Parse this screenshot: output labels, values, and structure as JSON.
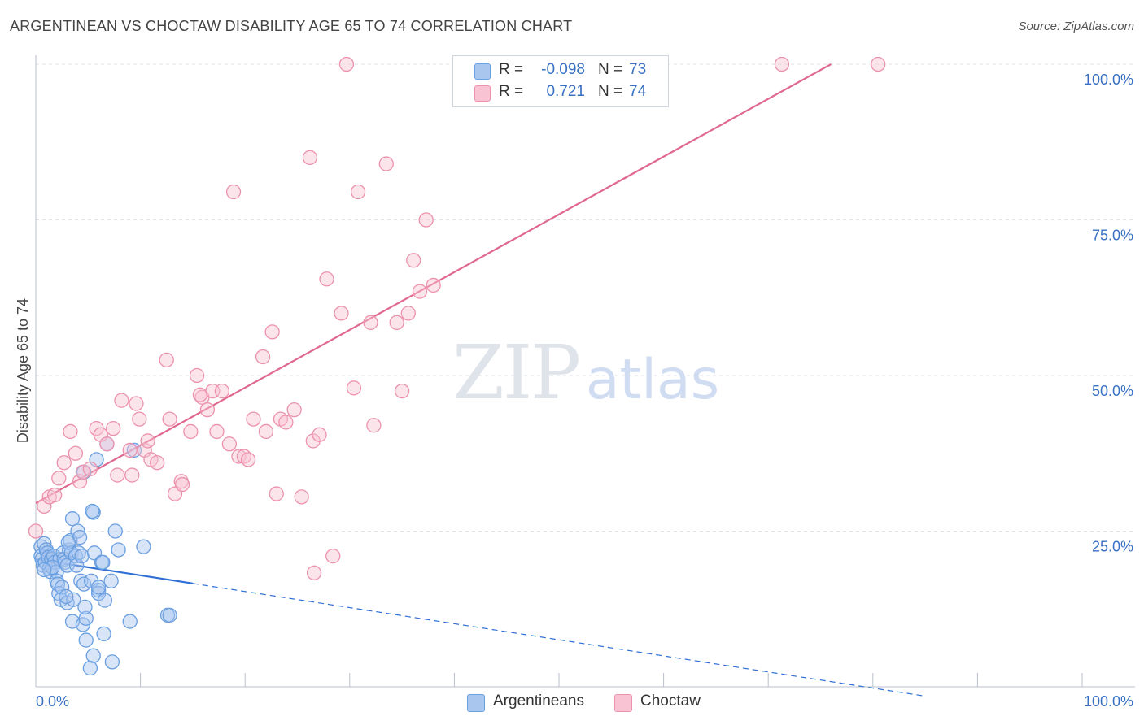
{
  "header": {
    "title": "ARGENTINEAN VS CHOCTAW DISABILITY AGE 65 TO 74 CORRELATION CHART",
    "source": "Source: ZipAtlas.com"
  },
  "watermark": {
    "zip": "ZIP",
    "atlas": "atlas"
  },
  "legend": {
    "r_label": "R =",
    "n_label": "N =",
    "rows": [
      {
        "r": "-0.098",
        "n": "73",
        "color": "#a9c6ef",
        "border": "#6a9fe0"
      },
      {
        "r": "0.721",
        "n": "74",
        "color": "#f8c4d3",
        "border": "#ec92ad"
      }
    ]
  },
  "bottom_legend": [
    {
      "label": "Argentineans",
      "color": "#a9c6ef",
      "border": "#6a9fe0"
    },
    {
      "label": "Choctaw",
      "color": "#f8c4d3",
      "border": "#ec92ad"
    }
  ],
  "colors": {
    "blue_line": "#2f6fd6",
    "pink_line": "#e0688f",
    "blue_point": "#6a9fe0",
    "pink_point": "#ec92ad",
    "axis_text": "#3a70c2"
  },
  "chart_data": {
    "type": "scatter",
    "title": "ARGENTINEAN VS CHOCTAW DISABILITY AGE 65 TO 74 CORRELATION CHART",
    "xlabel": "",
    "ylabel": "Disability Age 65 to 74",
    "xlim": [
      0,
      100
    ],
    "ylim": [
      0,
      100
    ],
    "x_tick_labels": [
      {
        "value": 0,
        "label": "0.0%"
      },
      {
        "value": 100,
        "label": "100.0%"
      }
    ],
    "y_tick_labels": [
      {
        "value": 25,
        "label": "25.0%"
      },
      {
        "value": 50,
        "label": "50.0%"
      },
      {
        "value": 75,
        "label": "75.0%"
      },
      {
        "value": 100,
        "label": "100.0%"
      }
    ],
    "grid": true,
    "series": [
      {
        "name": "Argentineans",
        "r": -0.098,
        "n": 73,
        "trend": {
          "x0": 0,
          "y0": 20.5,
          "x1": 15,
          "y1": 16.6,
          "dashed_to_x": 85,
          "dashed_to_y": -1.5
        },
        "points": [
          [
            0.5,
            22.5
          ],
          [
            0.5,
            21
          ],
          [
            0.6,
            20.5
          ],
          [
            0.7,
            19.5
          ],
          [
            0.8,
            23
          ],
          [
            0.9,
            20
          ],
          [
            1,
            22
          ],
          [
            1.1,
            21.5
          ],
          [
            1.2,
            20.8
          ],
          [
            1.3,
            19
          ],
          [
            1.4,
            18.5
          ],
          [
            1.5,
            20.5
          ],
          [
            1.7,
            21
          ],
          [
            1.8,
            20
          ],
          [
            2,
            18.5
          ],
          [
            2,
            17
          ],
          [
            2.1,
            16.5
          ],
          [
            2.2,
            15
          ],
          [
            2.3,
            20.5
          ],
          [
            2.4,
            14
          ],
          [
            2.5,
            16
          ],
          [
            2.6,
            21.5
          ],
          [
            2.7,
            20.5
          ],
          [
            2.8,
            20
          ],
          [
            3,
            19.5
          ],
          [
            3,
            13.5
          ],
          [
            3.2,
            22
          ],
          [
            3.3,
            23.5
          ],
          [
            3.4,
            21.5
          ],
          [
            3.5,
            27
          ],
          [
            3.5,
            10.5
          ],
          [
            3.6,
            14
          ],
          [
            3.8,
            21
          ],
          [
            3.9,
            19.5
          ],
          [
            4,
            25
          ],
          [
            4.1,
            21.5
          ],
          [
            4.2,
            24
          ],
          [
            4.3,
            17
          ],
          [
            4.4,
            21
          ],
          [
            4.5,
            10
          ],
          [
            4.6,
            16.5
          ],
          [
            4.6,
            34.5
          ],
          [
            4.8,
            11
          ],
          [
            4.8,
            7.5
          ],
          [
            5.2,
            3
          ],
          [
            5.3,
            17
          ],
          [
            5.5,
            5
          ],
          [
            5.5,
            28
          ],
          [
            5.6,
            21.5
          ],
          [
            5.8,
            36.5
          ],
          [
            6,
            15.5
          ],
          [
            6,
            15
          ],
          [
            6,
            16
          ],
          [
            6.3,
            20
          ],
          [
            6.4,
            20
          ],
          [
            6.5,
            8.5
          ],
          [
            6.8,
            39
          ],
          [
            7.2,
            17
          ],
          [
            7.3,
            4
          ],
          [
            7.6,
            25
          ],
          [
            7.9,
            22
          ],
          [
            9,
            10.5
          ],
          [
            9.4,
            38
          ],
          [
            10.3,
            22.5
          ],
          [
            12.6,
            11.5
          ],
          [
            12.8,
            11.5
          ],
          [
            5.4,
            28.2
          ],
          [
            2.9,
            14.5
          ],
          [
            1.6,
            19.2
          ],
          [
            0.8,
            18.8
          ],
          [
            3.1,
            23.2
          ],
          [
            4.7,
            12.8
          ],
          [
            6.6,
            13.9
          ]
        ]
      },
      {
        "name": "Choctaw",
        "r": 0.721,
        "n": 74,
        "trend": {
          "x0": 0,
          "y0": 29.5,
          "x1": 76,
          "y1": 100
        },
        "points": [
          [
            0,
            25
          ],
          [
            0.8,
            29
          ],
          [
            1.3,
            30.5
          ],
          [
            1.8,
            30.8
          ],
          [
            2.2,
            33.5
          ],
          [
            2.7,
            36
          ],
          [
            3.3,
            41
          ],
          [
            3.8,
            37.5
          ],
          [
            4.2,
            33
          ],
          [
            4.5,
            34.5
          ],
          [
            5.2,
            35
          ],
          [
            5.8,
            41.5
          ],
          [
            6.2,
            40.5
          ],
          [
            6.8,
            39
          ],
          [
            7.4,
            41.5
          ],
          [
            7.8,
            34
          ],
          [
            8.2,
            46
          ],
          [
            9,
            38
          ],
          [
            9.2,
            34
          ],
          [
            9.6,
            45.5
          ],
          [
            9.9,
            43
          ],
          [
            10.4,
            38
          ],
          [
            10.7,
            39.5
          ],
          [
            11,
            36.5
          ],
          [
            11.6,
            36
          ],
          [
            12.5,
            52.5
          ],
          [
            12.8,
            43
          ],
          [
            13.3,
            31
          ],
          [
            13.9,
            33
          ],
          [
            14,
            32.5
          ],
          [
            14.8,
            41
          ],
          [
            15.4,
            50
          ],
          [
            15.9,
            46.5
          ],
          [
            16.4,
            44.5
          ],
          [
            16.9,
            47.5
          ],
          [
            17.3,
            41
          ],
          [
            17.8,
            47.5
          ],
          [
            18.5,
            39
          ],
          [
            18.9,
            79.5
          ],
          [
            19.4,
            37
          ],
          [
            19.9,
            37
          ],
          [
            20.3,
            36.5
          ],
          [
            20.8,
            43
          ],
          [
            21.7,
            53
          ],
          [
            22,
            41
          ],
          [
            22.6,
            57
          ],
          [
            23,
            31
          ],
          [
            23.4,
            43
          ],
          [
            23.9,
            42.5
          ],
          [
            24.7,
            44.5
          ],
          [
            25.4,
            30.5
          ],
          [
            26.2,
            85
          ],
          [
            26.5,
            39.5
          ],
          [
            27.1,
            40.5
          ],
          [
            27.8,
            65.5
          ],
          [
            28.4,
            21
          ],
          [
            29.2,
            60
          ],
          [
            29.7,
            100
          ],
          [
            30.4,
            48
          ],
          [
            30.8,
            79.5
          ],
          [
            32,
            58.5
          ],
          [
            32.3,
            42
          ],
          [
            33.5,
            84
          ],
          [
            34.5,
            58.5
          ],
          [
            35,
            47.5
          ],
          [
            35.6,
            60
          ],
          [
            36.1,
            68.5
          ],
          [
            36.7,
            63.5
          ],
          [
            37.3,
            75
          ],
          [
            38,
            64.5
          ],
          [
            71.3,
            100
          ],
          [
            80.5,
            100
          ],
          [
            26.6,
            18.3
          ],
          [
            15.7,
            46.9
          ]
        ]
      }
    ]
  }
}
